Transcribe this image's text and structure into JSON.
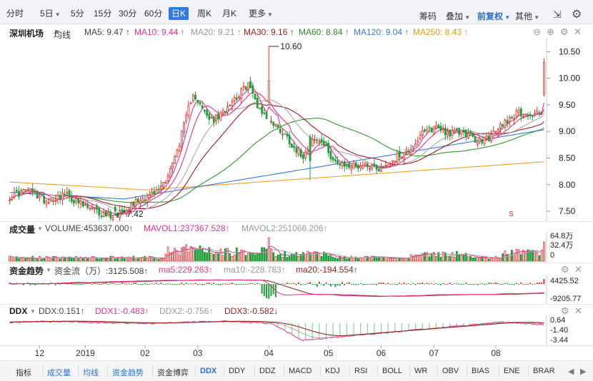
{
  "toolbar": {
    "periods": [
      "分时",
      "5日",
      "5分",
      "15分",
      "30分",
      "60分",
      "日K",
      "周K",
      "月K",
      "更多"
    ],
    "active_period": "日K",
    "right_items": [
      "筹码",
      "叠加",
      "前复权",
      "其他"
    ],
    "active_right": "前复权"
  },
  "stock_name": "深圳机场",
  "main_legend": {
    "indicator": "均线",
    "ma5": "MA5: 9.47 ↑",
    "ma10": "MA10: 9.44 ↑",
    "ma20": "MA20: 9.21 ↑",
    "ma30": "MA30: 9.16 ↑",
    "ma60": "MA60: 8.84 ↑",
    "ma120": "MA120: 9.04 ↑",
    "ma250": "MA250: 8.43 ↑"
  },
  "volume_legend": {
    "title": "成交量",
    "volume": "VOLUME:453637.000↑",
    "mavol1": "MAVOL1:237367.528↑",
    "mavol2": "MAVOL2:251066.206↑"
  },
  "flow_legend": {
    "title": "资金趋势",
    "flow": "资金流（万）:3125.508↑",
    "ma5": "ma5:229.263↑",
    "ma10": "ma10:-228.783↑",
    "ma20": "ma20:-194.554↑"
  },
  "ddx_legend": {
    "title": "DDX",
    "ddx": "DDX:0.151↑",
    "ddx1": "DDX1:-0.483↑",
    "ddx2": "DDX2:-0.756↑",
    "ddx3": "DDX3:-0.582↓"
  },
  "markers": {
    "high": "10.60",
    "low": "7.42",
    "s_label": "S"
  },
  "bottom_tabs": [
    "指标",
    "成交量",
    "均线",
    "资金趋势",
    "资金博弈",
    "DDX",
    "DDY",
    "DDZ",
    "MACD",
    "KDJ",
    "RSI",
    "BOLL",
    "WR",
    "OBV",
    "BIAS",
    "ENE",
    "BRAR"
  ],
  "active_bottom_tab": "DDX",
  "colors": {
    "up": "#e0302c",
    "down": "#1f9d3a",
    "ma5": "#e8308c",
    "ma10": "#e8308c",
    "ma20": "#aaaaaa",
    "ma30": "#9b1c1c",
    "ma60": "#2e9a2e",
    "ma120": "#3a78d8",
    "ma250": "#f0a020",
    "accent": "#2f7ae5"
  },
  "chart_data": [
    {
      "type": "candlestick",
      "title": "深圳机场",
      "y_ticks": [
        "10.50",
        "10.00",
        "9.50",
        "9.00",
        "8.50",
        "8.00",
        "7.50"
      ],
      "ylim": [
        7.42,
        10.6
      ],
      "x_ticks": [
        "12",
        "2019",
        "02",
        "03",
        "04",
        "05",
        "06",
        "07",
        "08"
      ],
      "annotations": [
        {
          "label": "10.60",
          "type": "high"
        },
        {
          "label": "7.42",
          "type": "low"
        }
      ],
      "anchors": [
        [
          0,
          7.78
        ],
        [
          8,
          7.9
        ],
        [
          16,
          7.7
        ],
        [
          24,
          7.82
        ],
        [
          32,
          7.6
        ],
        [
          40,
          7.45
        ],
        [
          46,
          7.42
        ],
        [
          52,
          7.6
        ],
        [
          58,
          7.75
        ],
        [
          64,
          7.85
        ],
        [
          68,
          8.1
        ],
        [
          72,
          8.5
        ],
        [
          76,
          9.1
        ],
        [
          80,
          9.75
        ],
        [
          84,
          9.4
        ],
        [
          88,
          9.2
        ],
        [
          92,
          9.3
        ],
        [
          96,
          9.55
        ],
        [
          100,
          9.7
        ],
        [
          104,
          9.9
        ],
        [
          108,
          9.5
        ],
        [
          112,
          9.25
        ],
        [
          116,
          9.1
        ],
        [
          120,
          8.95
        ],
        [
          124,
          8.7
        ],
        [
          128,
          8.55
        ],
        [
          132,
          8.85
        ],
        [
          136,
          8.8
        ],
        [
          140,
          8.55
        ],
        [
          144,
          8.35
        ],
        [
          150,
          8.35
        ],
        [
          156,
          8.38
        ],
        [
          162,
          8.3
        ],
        [
          168,
          8.5
        ],
        [
          174,
          8.65
        ],
        [
          180,
          8.95
        ],
        [
          186,
          9.1
        ],
        [
          192,
          8.95
        ],
        [
          198,
          9.0
        ],
        [
          204,
          8.8
        ],
        [
          210,
          8.9
        ],
        [
          216,
          9.2
        ],
        [
          222,
          9.35
        ],
        [
          228,
          9.3
        ],
        [
          232,
          9.4
        ]
      ],
      "last_candle": {
        "open": 9.7,
        "close": 10.3,
        "high": 10.38,
        "low": 9.66
      },
      "series": [
        "MA5",
        "MA10",
        "MA20",
        "MA30",
        "MA60",
        "MA120",
        "MA250"
      ]
    },
    {
      "type": "bar",
      "title": "成交量",
      "y_ticks": [
        "64.8万",
        "32.4万",
        "0"
      ],
      "ylim": [
        0,
        648000
      ],
      "series": [
        "VOLUME",
        "MAVOL1",
        "MAVOL2"
      ]
    },
    {
      "type": "bar",
      "title": "资金趋势",
      "y_ticks": [
        "4425.52",
        "-9205.77"
      ],
      "ylim": [
        -9205.77,
        4425.52
      ],
      "series": [
        "资金流（万）",
        "ma5",
        "ma10",
        "ma20"
      ]
    },
    {
      "type": "line",
      "title": "DDX",
      "y_ticks": [
        "0.64",
        "-1.40",
        "-3.44"
      ],
      "ylim": [
        -3.44,
        0.64
      ],
      "series": [
        "DDX",
        "DDX1",
        "DDX2",
        "DDX3"
      ]
    }
  ]
}
